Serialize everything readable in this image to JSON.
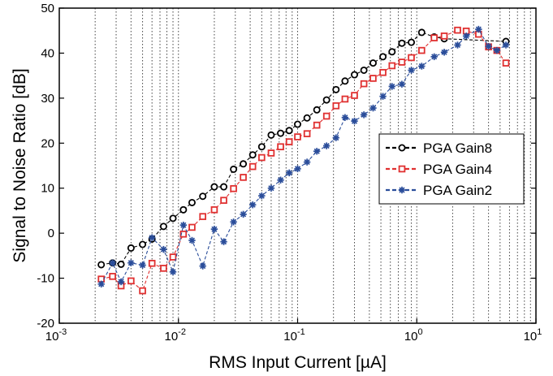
{
  "chart_data": {
    "type": "line",
    "title": "",
    "xlabel": "RMS Input Current [µA]",
    "ylabel": "Signal to Noise Ratio [dB]",
    "xscale": "log",
    "xlim": [
      0.001,
      10
    ],
    "ylim": [
      -20,
      50
    ],
    "x_ticks": [
      {
        "base": "10",
        "exp": "-3"
      },
      {
        "base": "10",
        "exp": "-2"
      },
      {
        "base": "10",
        "exp": "-1"
      },
      {
        "base": "10",
        "exp": "0"
      },
      {
        "base": "10",
        "exp": "1"
      }
    ],
    "y_ticks": [
      "-20",
      "-10",
      "0",
      "10",
      "20",
      "30",
      "40",
      "50"
    ],
    "grid": true,
    "legend": "center-right",
    "series": [
      {
        "name": "PGA Gain8",
        "color": "#000000",
        "marker": "circle",
        "points": [
          [
            0.00225,
            -7.0
          ],
          [
            0.0028,
            -6.6
          ],
          [
            0.0033,
            -6.9
          ],
          [
            0.004,
            -3.3
          ],
          [
            0.005,
            -2.5
          ],
          [
            0.006,
            -1.3
          ],
          [
            0.0075,
            1.5
          ],
          [
            0.009,
            3.3
          ],
          [
            0.011,
            5.2
          ],
          [
            0.013,
            6.8
          ],
          [
            0.016,
            8.2
          ],
          [
            0.02,
            10.3
          ],
          [
            0.024,
            10.3
          ],
          [
            0.029,
            14.2
          ],
          [
            0.035,
            15.4
          ],
          [
            0.042,
            17.4
          ],
          [
            0.05,
            19.2
          ],
          [
            0.06,
            21.8
          ],
          [
            0.072,
            22.2
          ],
          [
            0.085,
            22.8
          ],
          [
            0.1,
            24.2
          ],
          [
            0.12,
            25.6
          ],
          [
            0.145,
            27.4
          ],
          [
            0.175,
            29.6
          ],
          [
            0.21,
            31.9
          ],
          [
            0.25,
            33.8
          ],
          [
            0.3,
            35.2
          ],
          [
            0.36,
            36.2
          ],
          [
            0.43,
            37.8
          ],
          [
            0.52,
            39.2
          ],
          [
            0.62,
            40.3
          ],
          [
            0.75,
            42.2
          ],
          [
            0.9,
            42.4
          ],
          [
            1.1,
            44.6
          ],
          [
            1.4,
            43.6
          ],
          [
            1.7,
            43.2
          ],
          [
            5.6,
            42.6
          ]
        ]
      },
      {
        "name": "PGA Gain4",
        "color": "#e03030",
        "marker": "square",
        "points": [
          [
            0.00225,
            -10.2
          ],
          [
            0.0028,
            -9.6
          ],
          [
            0.0033,
            -11.7
          ],
          [
            0.004,
            -10.6
          ],
          [
            0.005,
            -12.8
          ],
          [
            0.006,
            -6.7
          ],
          [
            0.0075,
            -7.8
          ],
          [
            0.009,
            -5.3
          ],
          [
            0.011,
            -0.2
          ],
          [
            0.013,
            1.3
          ],
          [
            0.016,
            3.7
          ],
          [
            0.02,
            5.2
          ],
          [
            0.024,
            7.3
          ],
          [
            0.029,
            9.9
          ],
          [
            0.035,
            12.4
          ],
          [
            0.042,
            14.8
          ],
          [
            0.05,
            16.8
          ],
          [
            0.06,
            17.8
          ],
          [
            0.072,
            19.2
          ],
          [
            0.085,
            20.3
          ],
          [
            0.1,
            21.4
          ],
          [
            0.12,
            22.1
          ],
          [
            0.145,
            24.0
          ],
          [
            0.175,
            26.0
          ],
          [
            0.21,
            28.3
          ],
          [
            0.25,
            29.8
          ],
          [
            0.3,
            30.6
          ],
          [
            0.36,
            33.2
          ],
          [
            0.43,
            34.4
          ],
          [
            0.52,
            35.7
          ],
          [
            0.62,
            37.2
          ],
          [
            0.75,
            38.0
          ],
          [
            0.9,
            39.0
          ],
          [
            1.1,
            40.6
          ],
          [
            1.4,
            43.4
          ],
          [
            1.7,
            43.8
          ],
          [
            2.2,
            45.1
          ],
          [
            2.6,
            44.9
          ],
          [
            3.3,
            44.2
          ],
          [
            4.0,
            41.4
          ],
          [
            4.7,
            40.6
          ],
          [
            5.6,
            37.8
          ]
        ]
      },
      {
        "name": "PGA Gain2",
        "color": "#2a4d9a",
        "marker": "asterisk",
        "points": [
          [
            0.00225,
            -11.3
          ],
          [
            0.0028,
            -6.6
          ],
          [
            0.0033,
            -10.8
          ],
          [
            0.004,
            -6.6
          ],
          [
            0.005,
            -7.1
          ],
          [
            0.006,
            -1.0
          ],
          [
            0.0075,
            -3.6
          ],
          [
            0.009,
            -8.6
          ],
          [
            0.011,
            1.8
          ],
          [
            0.013,
            -1.6
          ],
          [
            0.016,
            -7.3
          ],
          [
            0.02,
            0.9
          ],
          [
            0.024,
            -1.9
          ],
          [
            0.029,
            2.5
          ],
          [
            0.035,
            4.2
          ],
          [
            0.042,
            6.3
          ],
          [
            0.05,
            8.3
          ],
          [
            0.06,
            10.0
          ],
          [
            0.072,
            11.8
          ],
          [
            0.085,
            13.4
          ],
          [
            0.1,
            14.3
          ],
          [
            0.12,
            15.8
          ],
          [
            0.145,
            18.2
          ],
          [
            0.175,
            19.4
          ],
          [
            0.21,
            21.2
          ],
          [
            0.25,
            25.7
          ],
          [
            0.3,
            24.9
          ],
          [
            0.36,
            26.3
          ],
          [
            0.43,
            27.8
          ],
          [
            0.52,
            30.4
          ],
          [
            0.62,
            32.6
          ],
          [
            0.75,
            33.1
          ],
          [
            0.9,
            36.2
          ],
          [
            1.1,
            37.1
          ],
          [
            1.4,
            39.2
          ],
          [
            1.7,
            40.2
          ],
          [
            2.2,
            41.8
          ],
          [
            2.6,
            43.8
          ],
          [
            3.3,
            45.3
          ],
          [
            4.0,
            41.5
          ],
          [
            4.7,
            40.6
          ],
          [
            5.6,
            41.8
          ]
        ]
      }
    ]
  }
}
